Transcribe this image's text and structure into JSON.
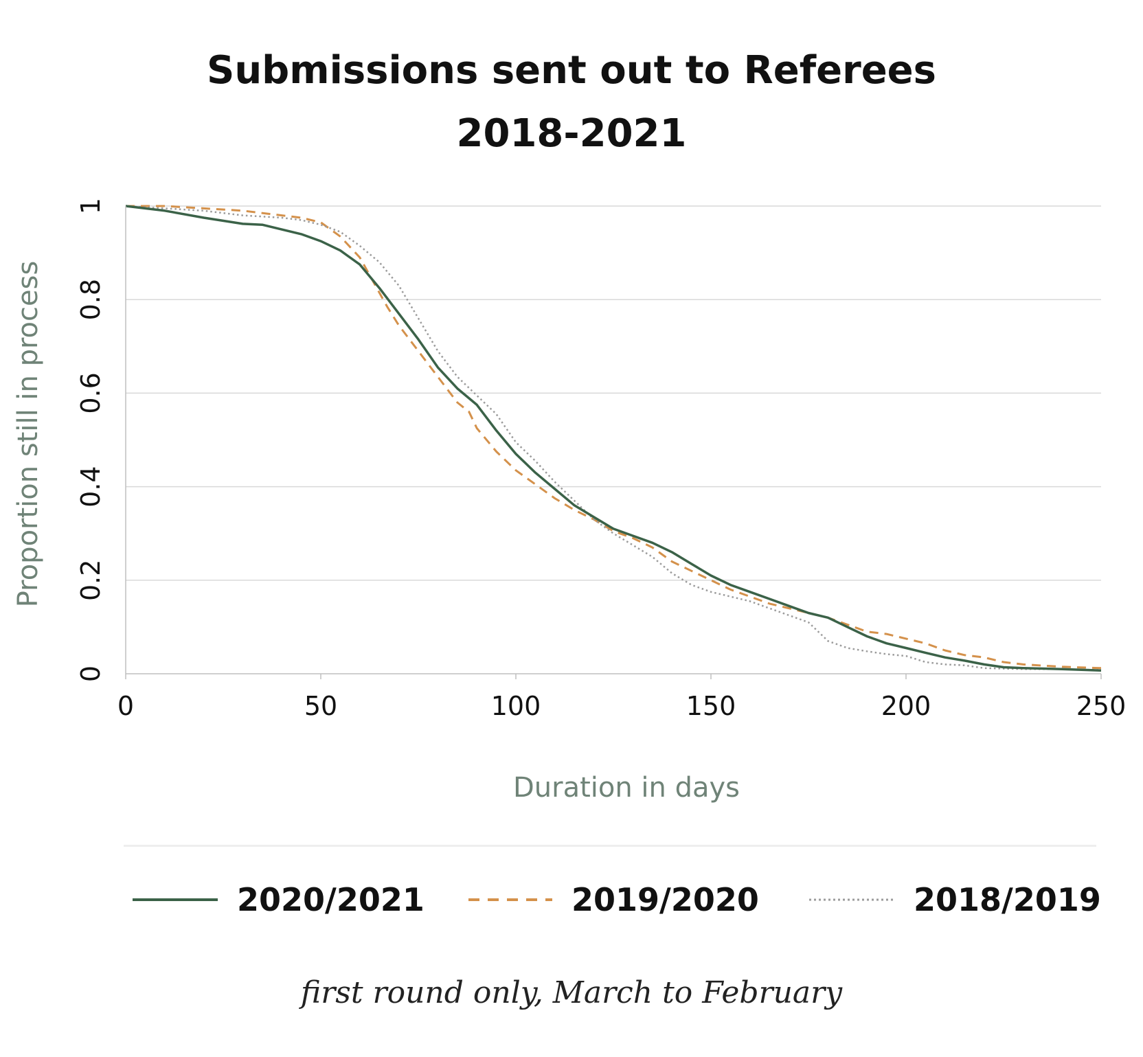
{
  "title_line1": "Submissions sent out to Referees",
  "title_line2": "2018-2021",
  "note": "first round only, March to February",
  "chart_data": {
    "type": "line",
    "xlabel": "Duration in days",
    "ylabel": "Proportion still in process",
    "xlim": [
      0,
      250
    ],
    "ylim": [
      0,
      1
    ],
    "x_ticks": [
      "0",
      "50",
      "100",
      "150",
      "200",
      "250"
    ],
    "y_ticks": [
      "0",
      "0.2",
      "0.4",
      "0.6",
      "0.8",
      "1"
    ],
    "grid": "horizontal",
    "legend_position": "bottom",
    "series": [
      {
        "name": "2020/2021",
        "color": "#3b6248",
        "style": "solid",
        "points": [
          [
            0,
            1.0
          ],
          [
            10,
            0.99
          ],
          [
            20,
            0.975
          ],
          [
            30,
            0.962
          ],
          [
            35,
            0.96
          ],
          [
            40,
            0.95
          ],
          [
            45,
            0.94
          ],
          [
            50,
            0.925
          ],
          [
            55,
            0.905
          ],
          [
            60,
            0.875
          ],
          [
            65,
            0.825
          ],
          [
            70,
            0.77
          ],
          [
            75,
            0.715
          ],
          [
            80,
            0.655
          ],
          [
            85,
            0.61
          ],
          [
            90,
            0.575
          ],
          [
            95,
            0.52
          ],
          [
            100,
            0.47
          ],
          [
            105,
            0.43
          ],
          [
            110,
            0.395
          ],
          [
            115,
            0.36
          ],
          [
            120,
            0.335
          ],
          [
            125,
            0.31
          ],
          [
            130,
            0.295
          ],
          [
            135,
            0.28
          ],
          [
            140,
            0.26
          ],
          [
            145,
            0.235
          ],
          [
            150,
            0.21
          ],
          [
            155,
            0.19
          ],
          [
            160,
            0.175
          ],
          [
            165,
            0.16
          ],
          [
            170,
            0.145
          ],
          [
            175,
            0.13
          ],
          [
            180,
            0.12
          ],
          [
            185,
            0.1
          ],
          [
            190,
            0.08
          ],
          [
            195,
            0.065
          ],
          [
            200,
            0.055
          ],
          [
            205,
            0.045
          ],
          [
            210,
            0.035
          ],
          [
            215,
            0.028
          ],
          [
            220,
            0.02
          ],
          [
            225,
            0.014
          ],
          [
            230,
            0.012
          ],
          [
            240,
            0.01
          ],
          [
            250,
            0.007
          ]
        ]
      },
      {
        "name": "2019/2020",
        "color": "#d4914b",
        "style": "dashed",
        "points": [
          [
            0,
            1.0
          ],
          [
            10,
            1.0
          ],
          [
            20,
            0.995
          ],
          [
            30,
            0.99
          ],
          [
            40,
            0.98
          ],
          [
            45,
            0.975
          ],
          [
            50,
            0.965
          ],
          [
            55,
            0.935
          ],
          [
            60,
            0.89
          ],
          [
            62,
            0.86
          ],
          [
            65,
            0.815
          ],
          [
            67,
            0.785
          ],
          [
            70,
            0.745
          ],
          [
            75,
            0.69
          ],
          [
            80,
            0.635
          ],
          [
            85,
            0.58
          ],
          [
            88,
            0.56
          ],
          [
            90,
            0.525
          ],
          [
            95,
            0.475
          ],
          [
            100,
            0.435
          ],
          [
            105,
            0.405
          ],
          [
            110,
            0.375
          ],
          [
            115,
            0.35
          ],
          [
            120,
            0.33
          ],
          [
            125,
            0.305
          ],
          [
            130,
            0.29
          ],
          [
            135,
            0.27
          ],
          [
            140,
            0.24
          ],
          [
            145,
            0.22
          ],
          [
            150,
            0.2
          ],
          [
            155,
            0.18
          ],
          [
            160,
            0.165
          ],
          [
            165,
            0.15
          ],
          [
            170,
            0.14
          ],
          [
            175,
            0.13
          ],
          [
            180,
            0.12
          ],
          [
            185,
            0.105
          ],
          [
            190,
            0.09
          ],
          [
            195,
            0.085
          ],
          [
            200,
            0.075
          ],
          [
            205,
            0.065
          ],
          [
            210,
            0.05
          ],
          [
            215,
            0.04
          ],
          [
            220,
            0.035
          ],
          [
            225,
            0.025
          ],
          [
            230,
            0.02
          ],
          [
            240,
            0.015
          ],
          [
            250,
            0.012
          ]
        ]
      },
      {
        "name": "2018/2019",
        "color": "#9b9b9b",
        "style": "dotted",
        "points": [
          [
            0,
            1.0
          ],
          [
            10,
            0.995
          ],
          [
            20,
            0.99
          ],
          [
            30,
            0.98
          ],
          [
            40,
            0.975
          ],
          [
            45,
            0.97
          ],
          [
            50,
            0.96
          ],
          [
            55,
            0.945
          ],
          [
            60,
            0.915
          ],
          [
            65,
            0.88
          ],
          [
            70,
            0.83
          ],
          [
            75,
            0.76
          ],
          [
            80,
            0.69
          ],
          [
            85,
            0.635
          ],
          [
            90,
            0.595
          ],
          [
            95,
            0.555
          ],
          [
            100,
            0.495
          ],
          [
            105,
            0.455
          ],
          [
            110,
            0.41
          ],
          [
            115,
            0.37
          ],
          [
            120,
            0.33
          ],
          [
            125,
            0.3
          ],
          [
            130,
            0.275
          ],
          [
            135,
            0.25
          ],
          [
            140,
            0.215
          ],
          [
            145,
            0.19
          ],
          [
            150,
            0.175
          ],
          [
            155,
            0.165
          ],
          [
            160,
            0.155
          ],
          [
            165,
            0.14
          ],
          [
            170,
            0.125
          ],
          [
            175,
            0.11
          ],
          [
            180,
            0.07
          ],
          [
            185,
            0.055
          ],
          [
            190,
            0.048
          ],
          [
            195,
            0.042
          ],
          [
            200,
            0.038
          ],
          [
            205,
            0.025
          ],
          [
            210,
            0.02
          ],
          [
            215,
            0.018
          ],
          [
            220,
            0.012
          ],
          [
            230,
            0.01
          ],
          [
            240,
            0.01
          ],
          [
            250,
            0.008
          ]
        ]
      }
    ]
  }
}
